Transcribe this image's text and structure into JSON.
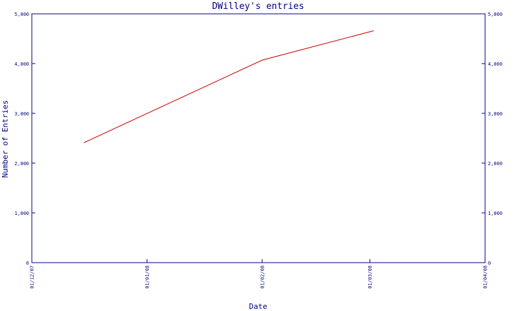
{
  "chart_data": {
    "type": "line",
    "title": "DWilley's entries",
    "xlabel": "Date",
    "ylabel": "Number of Entries",
    "x_ticks": [
      "01/12/07",
      "01/01/08",
      "01/02/08",
      "01/03/08",
      "01/04/08"
    ],
    "y_ticks": [
      "0",
      "1,000",
      "2,000",
      "3,000",
      "4,000",
      "5,000"
    ],
    "y_tick_values": [
      0,
      1000,
      2000,
      3000,
      4000,
      5000
    ],
    "ylim": [
      0,
      5000
    ],
    "xlim": [
      "2007-12-01",
      "2008-04-01"
    ],
    "grid": false,
    "colors": {
      "line": "#cc0000",
      "axis": "#000080",
      "text": "#000080"
    },
    "series": [
      {
        "x": [
          "2007-12-15",
          "2008-02-01",
          "2008-03-02"
        ],
        "y": [
          2410,
          4070,
          4660
        ]
      }
    ]
  }
}
